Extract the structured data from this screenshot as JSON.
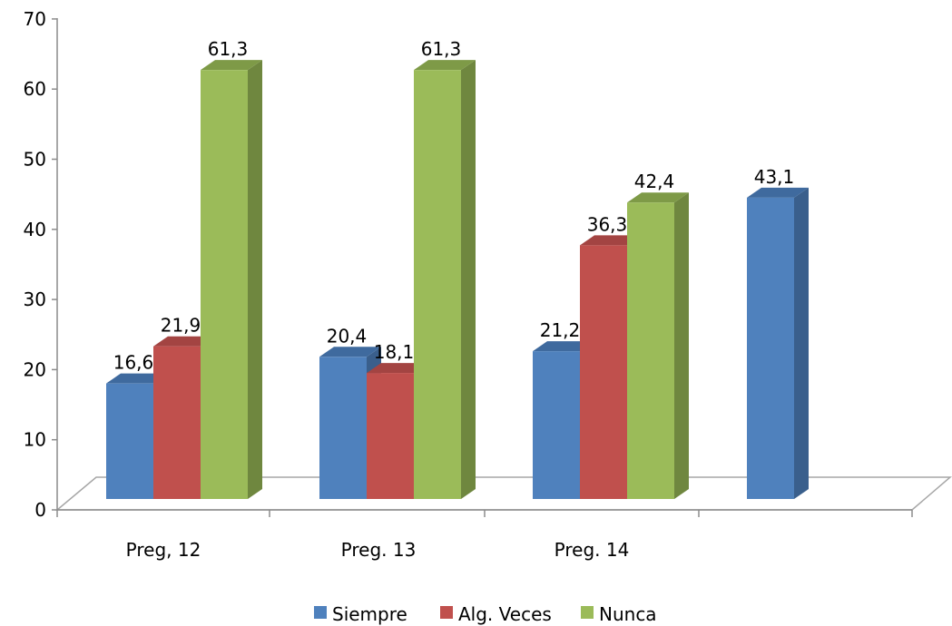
{
  "chart_data": {
    "type": "bar",
    "categories": [
      "Preg, 12",
      "Preg. 13",
      "Preg. 14",
      ""
    ],
    "series": [
      {
        "name": "Siempre",
        "color": "#4F81BD",
        "side_color": "#3A5F8C",
        "top_color": "#3F6A9E",
        "values": [
          16.6,
          20.4,
          21.2,
          43.1
        ],
        "labels": [
          "16,6",
          "20,4",
          "21,2",
          "43,1"
        ]
      },
      {
        "name": "Alg. Veces",
        "color": "#C0504D",
        "side_color": "#8E3B39",
        "top_color": "#A34442",
        "values": [
          21.9,
          18.1,
          36.3,
          null
        ],
        "labels": [
          "21,9",
          "18,1",
          "36,3",
          ""
        ]
      },
      {
        "name": "Nunca",
        "color": "#9BBB59",
        "side_color": "#6F873F",
        "top_color": "#7E9A47",
        "values": [
          61.3,
          61.3,
          42.4,
          null
        ],
        "labels": [
          "61,3",
          "61,3",
          "42,4",
          ""
        ]
      }
    ],
    "ylim": [
      0,
      70
    ],
    "yticks": [
      "0",
      "10",
      "20",
      "30",
      "40",
      "50",
      "60",
      "70"
    ],
    "title": "",
    "xlabel": "",
    "ylabel": "",
    "legend_position": "bottom",
    "grid": false
  }
}
